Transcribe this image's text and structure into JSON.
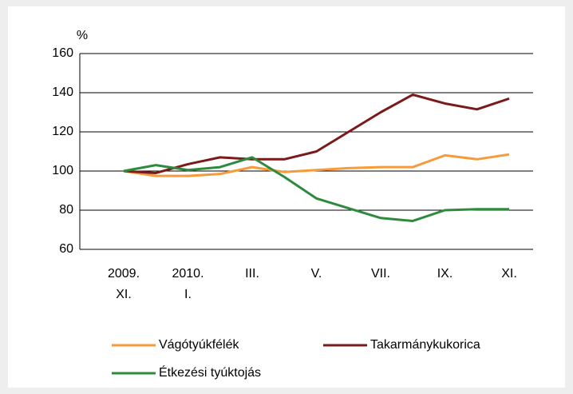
{
  "chart_data": {
    "type": "line",
    "y_label": "%",
    "categories": [
      "2009. XI.",
      null,
      "2010. I.",
      null,
      "III.",
      null,
      "V.",
      null,
      "VII.",
      null,
      "IX.",
      null,
      "XI."
    ],
    "series": [
      {
        "name": "Vágótyúkfélék",
        "color": "#f79a3a",
        "values": [
          100,
          97.5,
          97.5,
          98.5,
          102,
          99.5,
          100.5,
          101.5,
          102,
          102,
          108,
          106,
          108.5
        ]
      },
      {
        "name": "Takarmánykukorica",
        "color": "#7b1a1a",
        "values": [
          100,
          99,
          103.5,
          107,
          106,
          106,
          110,
          120,
          130,
          139,
          134.5,
          131.5,
          137
        ]
      },
      {
        "name": "Étkezési tyúktojás",
        "color": "#2e8b3e",
        "values": [
          100,
          103,
          100.5,
          102,
          107,
          97,
          86,
          81,
          76,
          74.5,
          80,
          80.5,
          80.5
        ]
      }
    ],
    "ylim": [
      60,
      160
    ],
    "yticks": [
      60,
      80,
      100,
      120,
      140,
      160
    ],
    "grid": true
  }
}
